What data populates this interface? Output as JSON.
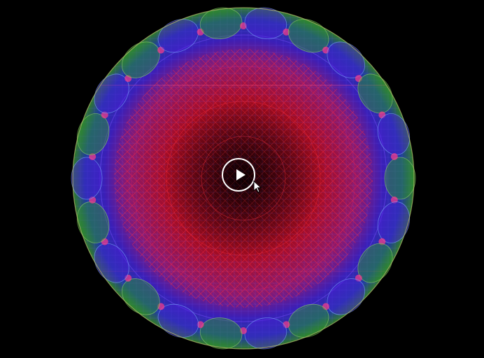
{
  "player": {
    "state": "paused",
    "control_icon": "play-icon",
    "cursor_icon": "pointer-arrow-icon",
    "frame_content": "wireframe-sphere",
    "colors": {
      "background": "#000000",
      "control": "#ffffff",
      "sphere_core": "#d0102a",
      "sphere_mid": "#4a1fd8",
      "sphere_rim": "#2e9a2a",
      "sphere_highlight": "#ff3a8a"
    }
  }
}
